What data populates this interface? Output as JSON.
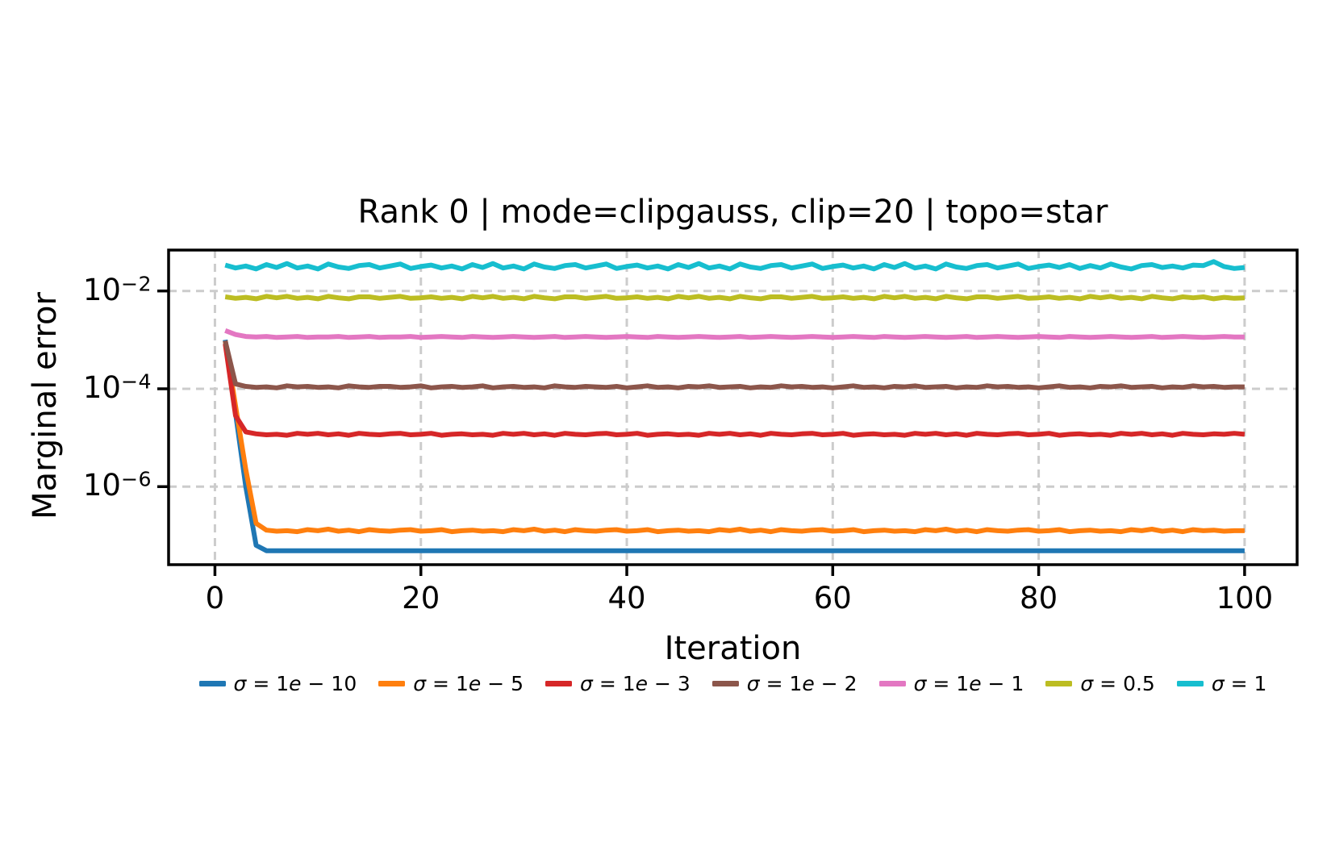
{
  "figure": {
    "background": "#ffffff",
    "text_color": "#000000"
  },
  "chart_data": {
    "type": "line",
    "title": "Rank 0 | mode=clipgauss, clip=20 | topo=star",
    "xlabel": "Iteration",
    "ylabel": "Marginal error",
    "x": {
      "start": 1,
      "end": 100,
      "step": 1
    },
    "xlim": [
      -4.5,
      105.1
    ],
    "y_scale": "log",
    "ylim_log10": [
      -7.595,
      -1.164
    ],
    "xticks": [
      {
        "value": 0,
        "label": "0"
      },
      {
        "value": 20,
        "label": "20"
      },
      {
        "value": 40,
        "label": "40"
      },
      {
        "value": 60,
        "label": "60"
      },
      {
        "value": 80,
        "label": "80"
      },
      {
        "value": 100,
        "label": "100"
      }
    ],
    "yticks": [
      {
        "log10": -2,
        "base": "10",
        "exp": "−2"
      },
      {
        "log10": -4,
        "base": "10",
        "exp": "−4"
      },
      {
        "log10": -6,
        "base": "10",
        "exp": "−6"
      }
    ],
    "grid": {
      "visible": true,
      "style": "dashed",
      "color": "#cccccc"
    },
    "legend_position": "bottom-center",
    "series": [
      {
        "name": "σ = 1e − 10",
        "color": "#1f77b4",
        "log10_values": [
          -3.0,
          -4.5,
          -6.0,
          -7.2,
          -7.31,
          -7.31,
          -7.31,
          -7.31,
          -7.31,
          -7.31,
          -7.31,
          -7.31,
          -7.31,
          -7.31,
          -7.31,
          -7.31,
          -7.31,
          -7.31,
          -7.31,
          -7.31,
          -7.31,
          -7.31,
          -7.31,
          -7.31,
          -7.31,
          -7.31,
          -7.31,
          -7.31,
          -7.31,
          -7.31,
          -7.31,
          -7.31,
          -7.31,
          -7.31,
          -7.31,
          -7.31,
          -7.31,
          -7.31,
          -7.31,
          -7.31,
          -7.31,
          -7.31,
          -7.31,
          -7.31,
          -7.31,
          -7.31,
          -7.31,
          -7.31,
          -7.31,
          -7.31,
          -7.31,
          -7.31,
          -7.31,
          -7.31,
          -7.31,
          -7.31,
          -7.31,
          -7.31,
          -7.31,
          -7.31,
          -7.31,
          -7.31,
          -7.31,
          -7.31,
          -7.31,
          -7.31,
          -7.31,
          -7.31,
          -7.31,
          -7.31,
          -7.31,
          -7.31,
          -7.31,
          -7.31,
          -7.31,
          -7.31,
          -7.31,
          -7.31,
          -7.31,
          -7.31,
          -7.31,
          -7.31,
          -7.31,
          -7.31,
          -7.31,
          -7.31,
          -7.31,
          -7.31,
          -7.31,
          -7.31,
          -7.31,
          -7.31,
          -7.31,
          -7.31,
          -7.31,
          -7.31,
          -7.31,
          -7.31,
          -7.31,
          -7.31
        ]
      },
      {
        "name": "σ = 1e − 5",
        "color": "#ff7f0e",
        "log10_values": [
          -3.02,
          -4.35,
          -5.65,
          -6.75,
          -6.89,
          -6.91,
          -6.9,
          -6.92,
          -6.88,
          -6.9,
          -6.87,
          -6.91,
          -6.89,
          -6.92,
          -6.88,
          -6.9,
          -6.91,
          -6.89,
          -6.88,
          -6.91,
          -6.9,
          -6.88,
          -6.92,
          -6.9,
          -6.89,
          -6.91,
          -6.9,
          -6.92,
          -6.88,
          -6.9,
          -6.87,
          -6.91,
          -6.89,
          -6.92,
          -6.88,
          -6.9,
          -6.91,
          -6.89,
          -6.88,
          -6.91,
          -6.9,
          -6.88,
          -6.92,
          -6.9,
          -6.89,
          -6.91,
          -6.9,
          -6.92,
          -6.88,
          -6.9,
          -6.87,
          -6.91,
          -6.89,
          -6.92,
          -6.88,
          -6.9,
          -6.91,
          -6.89,
          -6.88,
          -6.91,
          -6.9,
          -6.88,
          -6.92,
          -6.9,
          -6.89,
          -6.91,
          -6.9,
          -6.92,
          -6.88,
          -6.9,
          -6.87,
          -6.91,
          -6.89,
          -6.92,
          -6.88,
          -6.9,
          -6.91,
          -6.89,
          -6.88,
          -6.91,
          -6.9,
          -6.88,
          -6.92,
          -6.9,
          -6.89,
          -6.91,
          -6.9,
          -6.92,
          -6.88,
          -6.9,
          -6.87,
          -6.91,
          -6.89,
          -6.92,
          -6.88,
          -6.9,
          -6.89,
          -6.91,
          -6.9,
          -6.9
        ]
      },
      {
        "name": "σ = 1e − 3",
        "color": "#d62728",
        "log10_values": [
          -3.08,
          -4.55,
          -4.88,
          -4.92,
          -4.94,
          -4.93,
          -4.95,
          -4.91,
          -4.93,
          -4.91,
          -4.94,
          -4.92,
          -4.95,
          -4.91,
          -4.93,
          -4.94,
          -4.92,
          -4.91,
          -4.94,
          -4.93,
          -4.91,
          -4.95,
          -4.93,
          -4.92,
          -4.94,
          -4.93,
          -4.95,
          -4.91,
          -4.93,
          -4.91,
          -4.94,
          -4.92,
          -4.95,
          -4.91,
          -4.93,
          -4.94,
          -4.92,
          -4.91,
          -4.94,
          -4.93,
          -4.91,
          -4.95,
          -4.93,
          -4.92,
          -4.94,
          -4.93,
          -4.95,
          -4.91,
          -4.93,
          -4.91,
          -4.94,
          -4.92,
          -4.95,
          -4.91,
          -4.93,
          -4.94,
          -4.92,
          -4.91,
          -4.94,
          -4.93,
          -4.91,
          -4.95,
          -4.93,
          -4.92,
          -4.94,
          -4.93,
          -4.95,
          -4.91,
          -4.93,
          -4.91,
          -4.94,
          -4.92,
          -4.95,
          -4.91,
          -4.93,
          -4.94,
          -4.92,
          -4.91,
          -4.94,
          -4.93,
          -4.91,
          -4.95,
          -4.93,
          -4.92,
          -4.94,
          -4.93,
          -4.95,
          -4.91,
          -4.93,
          -4.91,
          -4.94,
          -4.92,
          -4.95,
          -4.91,
          -4.93,
          -4.94,
          -4.92,
          -4.93,
          -4.91,
          -4.93
        ]
      },
      {
        "name": "σ = 1e − 2",
        "color": "#8c564b",
        "log10_values": [
          -3.02,
          -3.9,
          -3.95,
          -3.97,
          -3.96,
          -3.98,
          -3.94,
          -3.96,
          -3.95,
          -3.97,
          -3.96,
          -3.98,
          -3.94,
          -3.96,
          -3.97,
          -3.95,
          -3.95,
          -3.97,
          -3.96,
          -3.94,
          -3.98,
          -3.96,
          -3.95,
          -3.97,
          -3.96,
          -3.94,
          -3.98,
          -3.96,
          -3.95,
          -3.97,
          -3.96,
          -3.98,
          -3.94,
          -3.96,
          -3.97,
          -3.95,
          -3.96,
          -3.97,
          -3.95,
          -3.98,
          -3.96,
          -3.94,
          -3.97,
          -3.96,
          -3.98,
          -3.95,
          -3.96,
          -3.94,
          -3.97,
          -3.96,
          -3.95,
          -3.98,
          -3.96,
          -3.97,
          -3.94,
          -3.96,
          -3.95,
          -3.97,
          -3.96,
          -3.98,
          -3.96,
          -3.94,
          -3.97,
          -3.96,
          -3.98,
          -3.95,
          -3.96,
          -3.94,
          -3.97,
          -3.96,
          -3.95,
          -3.98,
          -3.96,
          -3.97,
          -3.94,
          -3.96,
          -3.95,
          -3.97,
          -3.96,
          -3.98,
          -3.96,
          -3.94,
          -3.97,
          -3.96,
          -3.98,
          -3.95,
          -3.96,
          -3.94,
          -3.97,
          -3.96,
          -3.95,
          -3.98,
          -3.96,
          -3.97,
          -3.94,
          -3.96,
          -3.95,
          -3.97,
          -3.96,
          -3.96
        ]
      },
      {
        "name": "σ = 1e − 1",
        "color": "#e377c2",
        "log10_values": [
          -2.81,
          -2.89,
          -2.93,
          -2.94,
          -2.93,
          -2.95,
          -2.94,
          -2.93,
          -2.95,
          -2.94,
          -2.94,
          -2.93,
          -2.95,
          -2.94,
          -2.93,
          -2.95,
          -2.94,
          -2.94,
          -2.93,
          -2.95,
          -2.94,
          -2.93,
          -2.94,
          -2.95,
          -2.93,
          -2.94,
          -2.95,
          -2.94,
          -2.93,
          -2.94,
          -2.95,
          -2.94,
          -2.93,
          -2.95,
          -2.94,
          -2.93,
          -2.94,
          -2.95,
          -2.94,
          -2.93,
          -2.94,
          -2.95,
          -2.93,
          -2.94,
          -2.95,
          -2.94,
          -2.93,
          -2.94,
          -2.95,
          -2.94,
          -2.93,
          -2.95,
          -2.94,
          -2.93,
          -2.94,
          -2.95,
          -2.94,
          -2.93,
          -2.94,
          -2.95,
          -2.94,
          -2.93,
          -2.94,
          -2.95,
          -2.93,
          -2.94,
          -2.95,
          -2.94,
          -2.93,
          -2.94,
          -2.95,
          -2.94,
          -2.93,
          -2.95,
          -2.94,
          -2.93,
          -2.94,
          -2.95,
          -2.94,
          -2.93,
          -2.94,
          -2.95,
          -2.93,
          -2.94,
          -2.95,
          -2.94,
          -2.93,
          -2.94,
          -2.95,
          -2.94,
          -2.93,
          -2.95,
          -2.94,
          -2.93,
          -2.94,
          -2.95,
          -2.94,
          -2.93,
          -2.94,
          -2.94
        ]
      },
      {
        "name": "σ = 0.5",
        "color": "#bcbd22",
        "log10_values": [
          -2.12,
          -2.15,
          -2.13,
          -2.16,
          -2.11,
          -2.14,
          -2.11,
          -2.15,
          -2.13,
          -2.16,
          -2.11,
          -2.14,
          -2.16,
          -2.12,
          -2.12,
          -2.15,
          -2.13,
          -2.11,
          -2.15,
          -2.14,
          -2.12,
          -2.15,
          -2.13,
          -2.16,
          -2.11,
          -2.14,
          -2.11,
          -2.15,
          -2.13,
          -2.16,
          -2.11,
          -2.14,
          -2.16,
          -2.12,
          -2.12,
          -2.15,
          -2.13,
          -2.11,
          -2.15,
          -2.14,
          -2.12,
          -2.15,
          -2.13,
          -2.16,
          -2.11,
          -2.14,
          -2.11,
          -2.15,
          -2.13,
          -2.16,
          -2.11,
          -2.14,
          -2.16,
          -2.12,
          -2.12,
          -2.15,
          -2.13,
          -2.11,
          -2.15,
          -2.14,
          -2.12,
          -2.15,
          -2.13,
          -2.16,
          -2.11,
          -2.14,
          -2.11,
          -2.15,
          -2.13,
          -2.16,
          -2.11,
          -2.14,
          -2.16,
          -2.12,
          -2.12,
          -2.15,
          -2.13,
          -2.11,
          -2.15,
          -2.14,
          -2.12,
          -2.15,
          -2.13,
          -2.16,
          -2.11,
          -2.14,
          -2.11,
          -2.15,
          -2.13,
          -2.16,
          -2.11,
          -2.14,
          -2.16,
          -2.12,
          -2.14,
          -2.12,
          -2.16,
          -2.13,
          -2.15,
          -2.14
        ]
      },
      {
        "name": "σ = 1",
        "color": "#17becf",
        "log10_values": [
          -1.47,
          -1.53,
          -1.49,
          -1.55,
          -1.46,
          -1.52,
          -1.44,
          -1.53,
          -1.49,
          -1.55,
          -1.45,
          -1.51,
          -1.54,
          -1.48,
          -1.46,
          -1.53,
          -1.49,
          -1.45,
          -1.54,
          -1.5,
          -1.47,
          -1.53,
          -1.49,
          -1.55,
          -1.46,
          -1.52,
          -1.44,
          -1.53,
          -1.49,
          -1.55,
          -1.45,
          -1.51,
          -1.54,
          -1.48,
          -1.46,
          -1.53,
          -1.49,
          -1.45,
          -1.54,
          -1.5,
          -1.47,
          -1.53,
          -1.49,
          -1.55,
          -1.46,
          -1.52,
          -1.44,
          -1.53,
          -1.49,
          -1.55,
          -1.45,
          -1.51,
          -1.54,
          -1.48,
          -1.46,
          -1.53,
          -1.49,
          -1.45,
          -1.54,
          -1.5,
          -1.47,
          -1.53,
          -1.49,
          -1.55,
          -1.46,
          -1.52,
          -1.44,
          -1.53,
          -1.49,
          -1.55,
          -1.45,
          -1.51,
          -1.54,
          -1.48,
          -1.46,
          -1.53,
          -1.49,
          -1.45,
          -1.54,
          -1.5,
          -1.47,
          -1.52,
          -1.46,
          -1.54,
          -1.48,
          -1.53,
          -1.45,
          -1.51,
          -1.55,
          -1.48,
          -1.46,
          -1.52,
          -1.49,
          -1.53,
          -1.47,
          -1.48,
          -1.4,
          -1.5,
          -1.54,
          -1.52
        ]
      }
    ]
  }
}
